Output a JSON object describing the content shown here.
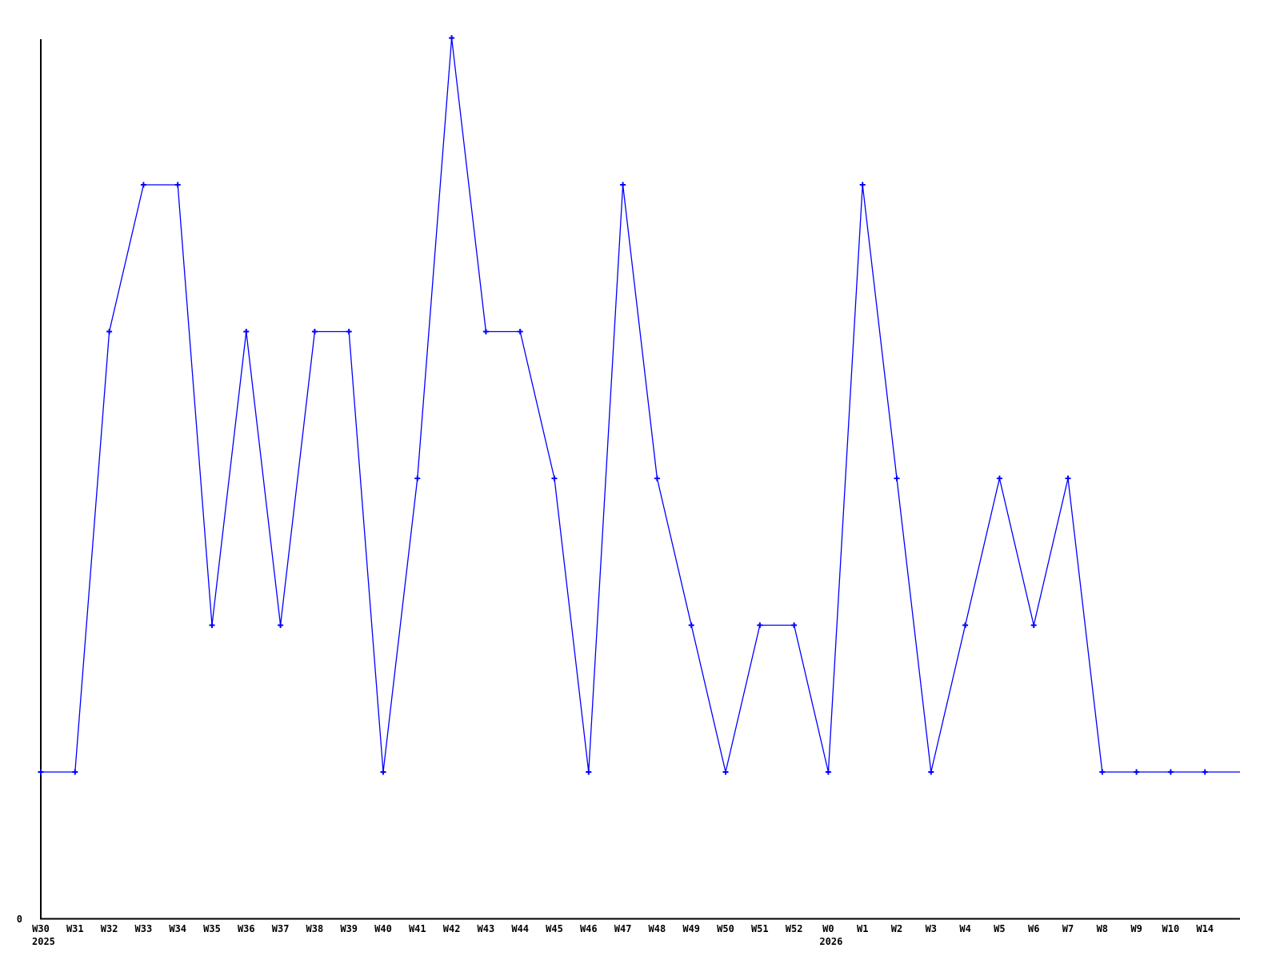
{
  "chart_data": {
    "type": "line",
    "title": "",
    "xlabel": "",
    "ylabel": "",
    "grid": false,
    "legend": null,
    "marker": "plus",
    "line_color": "#0000ff",
    "axis_color": "#000000",
    "text_color": "#000000",
    "background_color": "#ffffff",
    "ylim": [
      0,
      6
    ],
    "y_tick_labels": [
      "0"
    ],
    "categories": [
      "W30",
      "W31",
      "W32",
      "W33",
      "W34",
      "W35",
      "W36",
      "W37",
      "W38",
      "W39",
      "W40",
      "W41",
      "W42",
      "W43",
      "W44",
      "W45",
      "W46",
      "W47",
      "W48",
      "W49",
      "W50",
      "W51",
      "W52",
      "W0",
      "W1",
      "W2",
      "W3",
      "W4",
      "W5",
      "W6",
      "W7",
      "W8",
      "W9",
      "W10",
      "W14"
    ],
    "year_labels": [
      {
        "index": 0,
        "label": "2025"
      },
      {
        "index": 23,
        "label": "2026"
      }
    ],
    "values": [
      1,
      1,
      4,
      5,
      5,
      2,
      4,
      2,
      4,
      4,
      1,
      3,
      6,
      4,
      4,
      3,
      1,
      5,
      3,
      2,
      1,
      2,
      2,
      1,
      5,
      3,
      1,
      2,
      3,
      2,
      3,
      1,
      1,
      1,
      1
    ],
    "trailing_value": 1
  }
}
